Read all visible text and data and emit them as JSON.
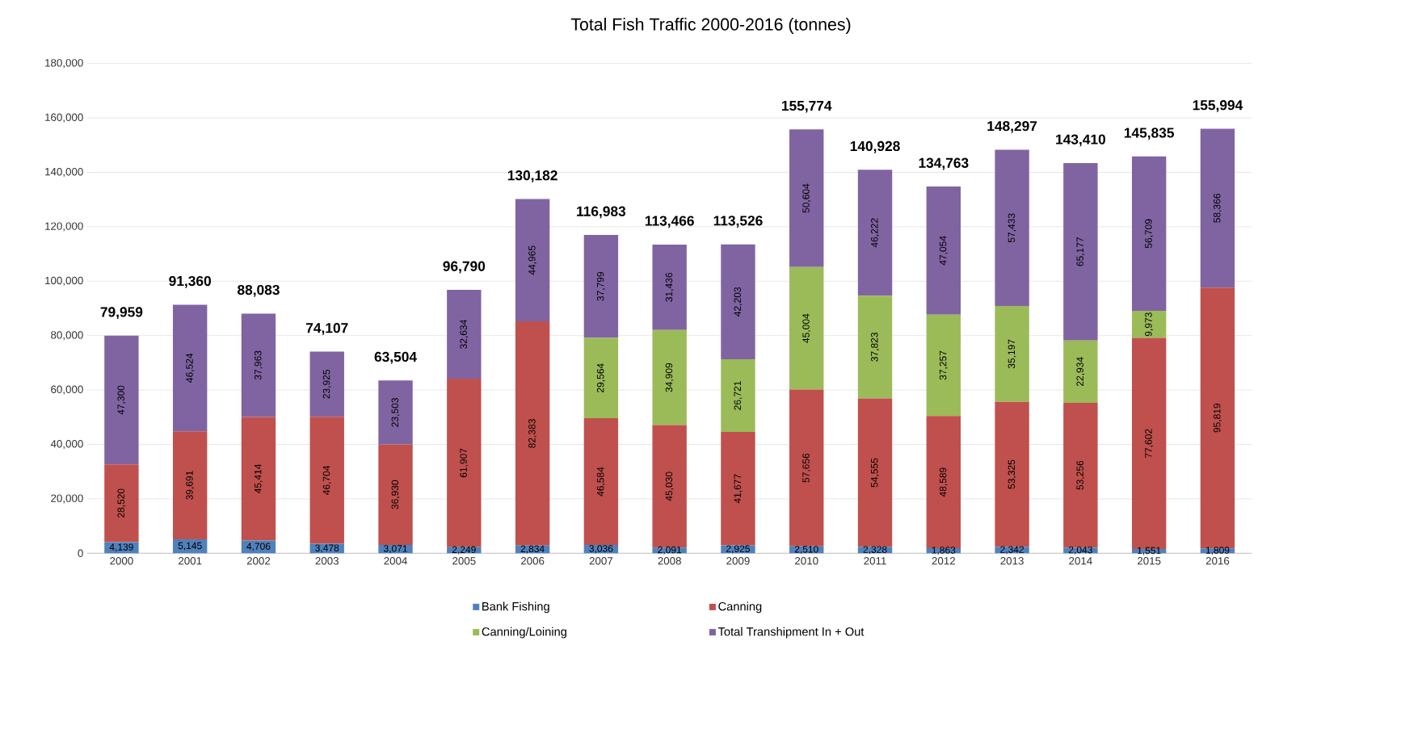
{
  "chart_data": {
    "type": "bar",
    "title": "Total Fish Traffic 2000-2016 (tonnes)",
    "stacked": true,
    "categories": [
      "2000",
      "2001",
      "2002",
      "2003",
      "2004",
      "2005",
      "2006",
      "2007",
      "2008",
      "2009",
      "2010",
      "2011",
      "2012",
      "2013",
      "2014",
      "2015",
      "2016"
    ],
    "series": [
      {
        "name": "Bank Fishing",
        "color": "#4f81bd",
        "values": [
          4139,
          5145,
          4706,
          3478,
          3071,
          2249,
          2834,
          3036,
          2091,
          2925,
          2510,
          2328,
          1863,
          2342,
          2043,
          1551,
          1809
        ],
        "value_labels": [
          "4,139",
          "5,145",
          "4,706",
          "3,478",
          "3,071",
          "2,249",
          "2,834",
          "3,036",
          "2,091",
          "2,925",
          "2,510",
          "2,328",
          "1,863",
          "2,342",
          "2,043",
          "1,551",
          "1,809"
        ]
      },
      {
        "name": "Canning",
        "color": "#c0504d",
        "values": [
          28520,
          39691,
          45414,
          46704,
          36930,
          61907,
          82383,
          46584,
          45030,
          41677,
          57656,
          54555,
          48589,
          53325,
          53256,
          77602,
          95819
        ],
        "value_labels": [
          "28,520",
          "39,691",
          "45,414",
          "46,704",
          "36,930",
          "61,907",
          "82,383",
          "46,584",
          "45,030",
          "41,677",
          "57,656",
          "54,555",
          "48,589",
          "53,325",
          "53,256",
          "77,602",
          "95,819"
        ]
      },
      {
        "name": "Canning/Loining",
        "color": "#9bbb59",
        "values": [
          null,
          null,
          null,
          null,
          null,
          null,
          null,
          29564,
          34909,
          26721,
          45004,
          37823,
          37257,
          35197,
          22934,
          9973,
          null
        ],
        "value_labels": [
          null,
          null,
          null,
          null,
          null,
          null,
          null,
          "29,564",
          "34,909",
          "26,721",
          "45,004",
          "37,823",
          "37,257",
          "35,197",
          "22,934",
          "9,973",
          null
        ]
      },
      {
        "name": "Total Transhipment In + Out",
        "color": "#8064a2",
        "values": [
          47300,
          46524,
          37963,
          23925,
          23503,
          32634,
          44965,
          37799,
          31436,
          42203,
          50604,
          46222,
          47054,
          57433,
          65177,
          56709,
          58366
        ],
        "value_labels": [
          "47,300",
          "46,524",
          "37,963",
          "23,925",
          "23,503",
          "32,634",
          "44,965",
          "37,799",
          "31,436",
          "42,203",
          "50,604",
          "46,222",
          "47,054",
          "57,433",
          "65,177",
          "56,709",
          "58,366"
        ]
      }
    ],
    "totals": [
      "79,959",
      "91,360",
      "88,083",
      "74,107",
      "63,504",
      "96,790",
      "130,182",
      "116,983",
      "113,466",
      "113,526",
      "155,774",
      "140,928",
      "134,763",
      "148,297",
      "143,410",
      "145,835",
      "155,994"
    ],
    "ylim": [
      0,
      180000
    ],
    "yticks": [
      {
        "value": 0,
        "label": "0"
      },
      {
        "value": 20000,
        "label": "20,000"
      },
      {
        "value": 40000,
        "label": "40,000"
      },
      {
        "value": 60000,
        "label": "60,000"
      },
      {
        "value": 80000,
        "label": "80,000"
      },
      {
        "value": 100000,
        "label": "100,000"
      },
      {
        "value": 120000,
        "label": "120,000"
      },
      {
        "value": 140000,
        "label": "140,000"
      },
      {
        "value": 160000,
        "label": "160,000"
      },
      {
        "value": 180000,
        "label": "180,000"
      }
    ],
    "grid": "y",
    "legend": "bottom"
  }
}
